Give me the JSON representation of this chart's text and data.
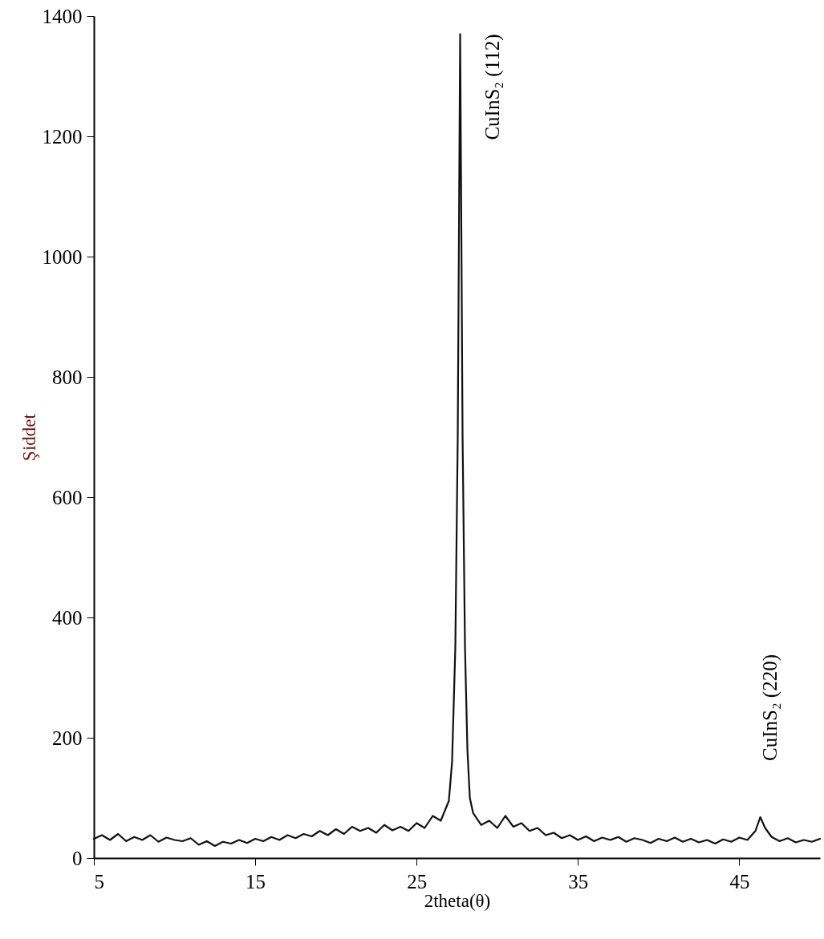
{
  "chart_data": {
    "type": "line",
    "xlabel": "2theta(θ)",
    "ylabel": "Şiddet",
    "xlim": [
      5,
      50
    ],
    "xticks": [
      5,
      15,
      25,
      35,
      45
    ],
    "ylim": [
      0,
      1400
    ],
    "yticks": [
      0,
      200,
      400,
      600,
      800,
      1000,
      1200,
      1400
    ],
    "grid": false,
    "marker": "none",
    "line_style": "solid",
    "x": [
      5,
      5.5,
      6,
      6.5,
      7,
      7.5,
      8,
      8.5,
      9,
      9.5,
      10,
      10.5,
      11,
      11.5,
      12,
      12.5,
      13,
      13.5,
      14,
      14.5,
      15,
      15.5,
      16,
      16.5,
      17,
      17.5,
      18,
      18.5,
      19,
      19.5,
      20,
      20.5,
      21,
      21.5,
      22,
      22.5,
      23,
      23.5,
      24,
      24.5,
      25,
      25.5,
      26,
      26.5,
      27,
      27.2,
      27.4,
      27.55,
      27.65,
      27.7,
      27.75,
      27.85,
      28,
      28.15,
      28.3,
      28.5,
      29,
      29.5,
      30,
      30.5,
      31,
      31.5,
      32,
      32.5,
      33,
      33.5,
      34,
      34.5,
      35,
      35.5,
      36,
      36.5,
      37,
      37.5,
      38,
      38.5,
      39,
      39.5,
      40,
      40.5,
      41,
      41.5,
      42,
      42.5,
      43,
      43.5,
      44,
      44.5,
      45,
      45.5,
      46,
      46.3,
      46.6,
      47,
      47.5,
      48,
      48.5,
      49,
      49.5,
      50
    ],
    "series": [
      {
        "color": "#111111",
        "values": [
          32,
          38,
          30,
          40,
          28,
          35,
          30,
          38,
          27,
          34,
          30,
          28,
          33,
          22,
          28,
          20,
          27,
          24,
          30,
          25,
          32,
          28,
          35,
          30,
          38,
          33,
          40,
          36,
          45,
          38,
          48,
          40,
          52,
          45,
          50,
          42,
          55,
          46,
          52,
          45,
          58,
          50,
          70,
          62,
          95,
          160,
          350,
          700,
          1150,
          1370,
          1150,
          700,
          350,
          180,
          100,
          75,
          55,
          62,
          50,
          70,
          52,
          58,
          45,
          50,
          38,
          42,
          33,
          38,
          30,
          36,
          28,
          34,
          30,
          35,
          27,
          33,
          30,
          25,
          32,
          28,
          34,
          27,
          32,
          26,
          30,
          24,
          31,
          27,
          34,
          30,
          45,
          68,
          50,
          35,
          28,
          33,
          26,
          30,
          27,
          32
        ]
      }
    ],
    "annotations": [
      {
        "text": "CuInS₂ (112)",
        "x": 27.7,
        "y": 1370
      },
      {
        "text": "CuInS₂ (220)",
        "x": 46.3,
        "y": 68
      }
    ]
  }
}
